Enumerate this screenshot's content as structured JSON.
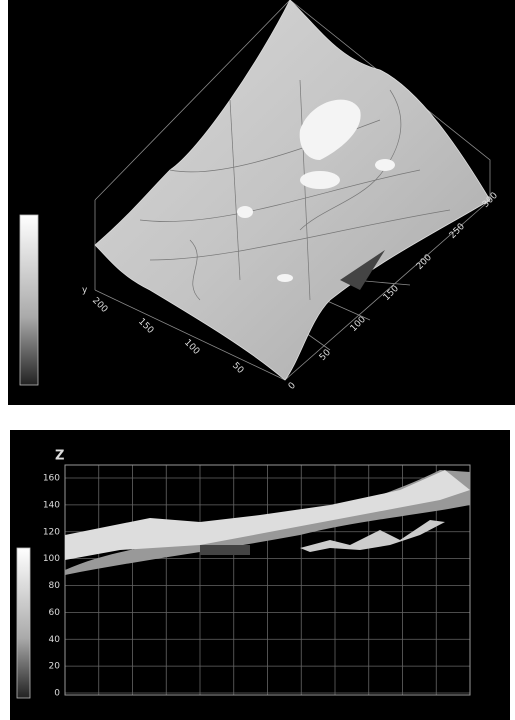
{
  "top_panel": {
    "axis_label": "y",
    "y_ticks": [
      200,
      150,
      100,
      50
    ],
    "x_ticks": [
      0,
      50,
      100,
      150,
      200,
      250,
      300
    ]
  },
  "bottom_panel": {
    "axis_label": "Z",
    "z_ticks": [
      160,
      140,
      120,
      100,
      80,
      60,
      40,
      20,
      0
    ]
  }
}
